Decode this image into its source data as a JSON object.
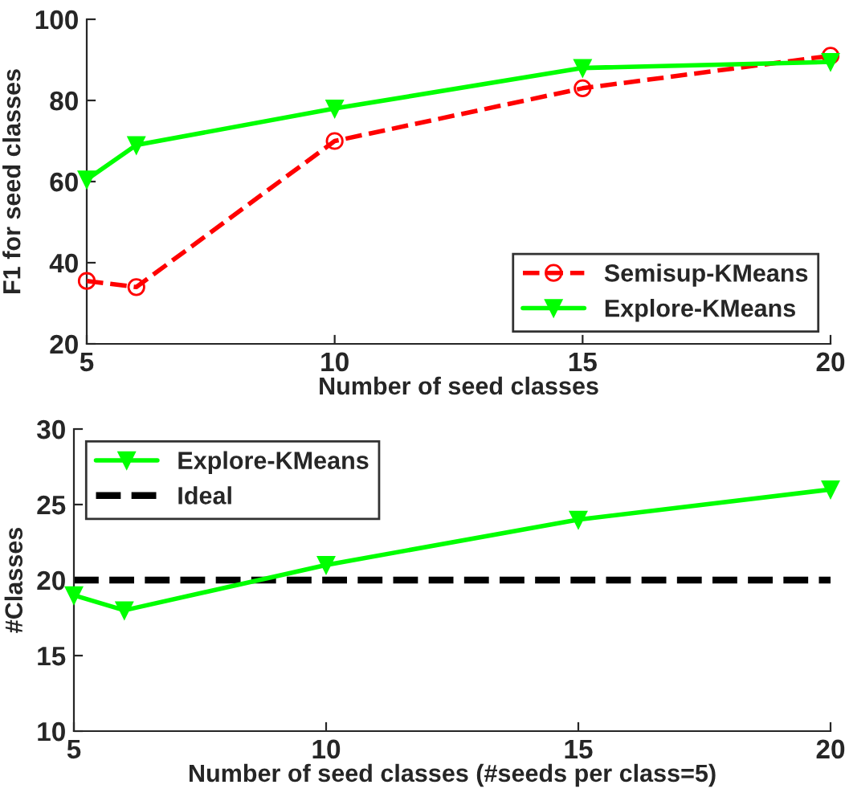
{
  "chart_data": [
    {
      "type": "line",
      "xlabel": "Number of seed classes",
      "ylabel": "F1 for seed classes",
      "x": [
        5,
        6,
        10,
        15,
        20
      ],
      "xlim": [
        5,
        20
      ],
      "xticks": [
        5,
        10,
        15,
        20
      ],
      "ylim": [
        20,
        100
      ],
      "yticks": [
        20,
        40,
        60,
        80,
        100
      ],
      "legend": "bottom right",
      "grid": false,
      "series": [
        {
          "name": "Semisup-KMeans",
          "color": "#ff0000",
          "values": [
            35.5,
            34,
            70,
            83,
            91
          ],
          "marker": "circle",
          "line_style": "dashed"
        },
        {
          "name": "Explore-KMeans",
          "color": "#00ff00",
          "values": [
            60.5,
            69,
            78,
            88,
            89.5
          ],
          "marker": "triangle",
          "line_style": "solid"
        }
      ]
    },
    {
      "type": "line",
      "xlabel": "Number of seed classes (#seeds per class=5)",
      "ylabel": "#Classes",
      "x": [
        5,
        6,
        10,
        15,
        20
      ],
      "xlim": [
        5,
        20
      ],
      "xticks": [
        5,
        10,
        15,
        20
      ],
      "ylim": [
        10,
        30
      ],
      "yticks": [
        10,
        15,
        20,
        25,
        30
      ],
      "legend": "top left",
      "grid": false,
      "series": [
        {
          "name": "Explore-KMeans",
          "color": "#00ff00",
          "values": [
            19,
            18,
            21,
            24,
            26
          ],
          "marker": "triangle",
          "line_style": "solid"
        }
      ],
      "ref_lines": [
        {
          "axis": "y",
          "value": 20,
          "label": "Ideal",
          "color": "#000000",
          "line_style": "dashed"
        }
      ]
    }
  ]
}
